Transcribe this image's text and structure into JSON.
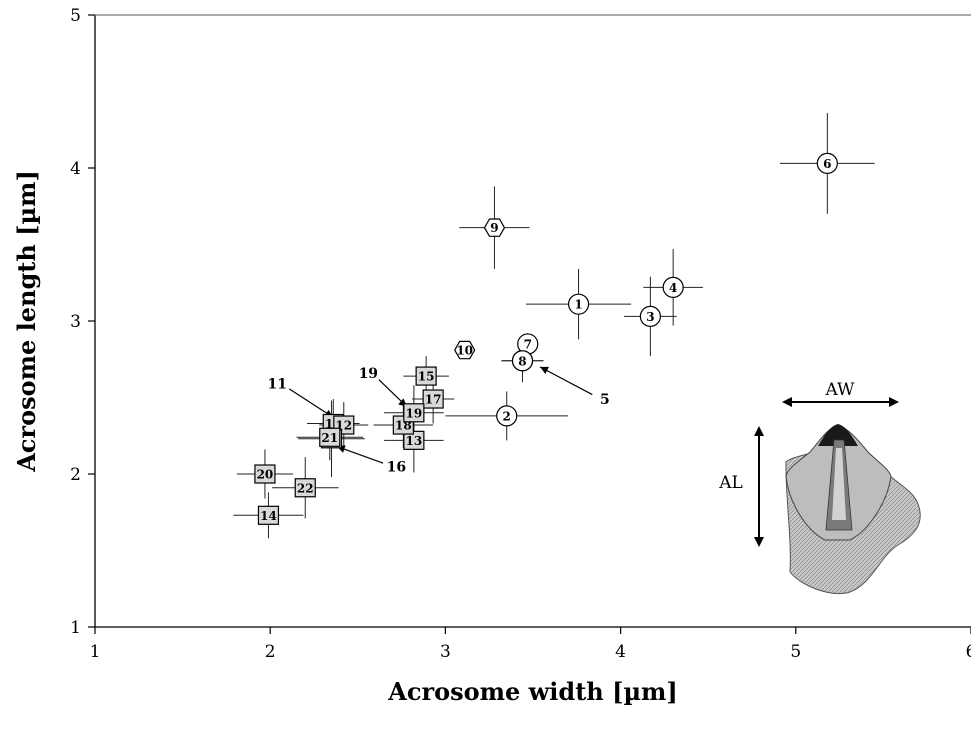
{
  "chart_data": {
    "type": "scatter",
    "xlabel": "Acrosome width [µm]",
    "ylabel": "Acrosome length [µm]",
    "xlim": [
      1,
      6
    ],
    "ylim": [
      1,
      5
    ],
    "xticks": [
      "1",
      "2",
      "3",
      "4",
      "5",
      "6"
    ],
    "yticks": [
      "1",
      "2",
      "3",
      "4",
      "5"
    ],
    "grid": false,
    "points": [
      {
        "label": "1",
        "x": 3.76,
        "y": 3.11,
        "xerr": 0.3,
        "yerr": 0.23,
        "marker": "circle"
      },
      {
        "label": "2",
        "x": 3.35,
        "y": 2.38,
        "xerr": 0.35,
        "yerr": 0.16,
        "marker": "circle"
      },
      {
        "label": "3",
        "x": 4.17,
        "y": 3.03,
        "xerr": 0.15,
        "yerr": 0.26,
        "marker": "circle"
      },
      {
        "label": "4",
        "x": 4.3,
        "y": 3.22,
        "xerr": 0.17,
        "yerr": 0.25,
        "marker": "circle"
      },
      {
        "label": "5",
        "x": 3.44,
        "y": 2.74,
        "xerr": 0.12,
        "yerr": 0.14,
        "marker": "circle"
      },
      {
        "label": "6",
        "x": 5.18,
        "y": 4.03,
        "xerr": 0.27,
        "yerr": 0.33,
        "marker": "circle"
      },
      {
        "label": "7",
        "x": 3.47,
        "y": 2.85,
        "xerr": 0.05,
        "yerr": 0.07,
        "marker": "circle"
      },
      {
        "label": "8",
        "x": 3.44,
        "y": 2.74,
        "xerr": 0.12,
        "yerr": 0.14,
        "marker": "circle"
      },
      {
        "label": "9",
        "x": 3.28,
        "y": 3.61,
        "xerr": 0.2,
        "yerr": 0.27,
        "marker": "hexagon"
      },
      {
        "label": "10",
        "x": 3.11,
        "y": 2.81,
        "xerr": 0.0,
        "yerr": 0.0,
        "marker": "hexagon"
      },
      {
        "label": "11",
        "x": 2.36,
        "y": 2.33,
        "xerr": 0.15,
        "yerr": 0.16,
        "marker": "square"
      },
      {
        "label": "12",
        "x": 2.42,
        "y": 2.32,
        "xerr": 0.14,
        "yerr": 0.15,
        "marker": "square"
      },
      {
        "label": "13",
        "x": 2.82,
        "y": 2.22,
        "xerr": 0.17,
        "yerr": 0.21,
        "marker": "square"
      },
      {
        "label": "14",
        "x": 1.99,
        "y": 1.73,
        "xerr": 0.2,
        "yerr": 0.15,
        "marker": "square"
      },
      {
        "label": "15",
        "x": 2.89,
        "y": 2.64,
        "xerr": 0.13,
        "yerr": 0.13,
        "marker": "square"
      },
      {
        "label": "16",
        "x": 2.35,
        "y": 2.23,
        "xerr": 0.19,
        "yerr": 0.25,
        "marker": "square"
      },
      {
        "label": "17",
        "x": 2.93,
        "y": 2.49,
        "xerr": 0.12,
        "yerr": 0.16,
        "marker": "square"
      },
      {
        "label": "18",
        "x": 2.76,
        "y": 2.32,
        "xerr": 0.17,
        "yerr": 0.15,
        "marker": "square"
      },
      {
        "label": "19",
        "x": 2.82,
        "y": 2.4,
        "xerr": 0.17,
        "yerr": 0.18,
        "marker": "square"
      },
      {
        "label": "20",
        "x": 1.97,
        "y": 2.0,
        "xerr": 0.16,
        "yerr": 0.16,
        "marker": "square"
      },
      {
        "label": "21",
        "x": 2.34,
        "y": 2.24,
        "xerr": 0.19,
        "yerr": 0.15,
        "marker": "square"
      },
      {
        "label": "22",
        "x": 2.2,
        "y": 1.91,
        "xerr": 0.19,
        "yerr": 0.2,
        "marker": "square"
      }
    ],
    "annotations": [
      {
        "text": "11",
        "label_x": 2.04,
        "label_y": 2.59,
        "x": 2.36,
        "y": 2.37
      },
      {
        "text": "19",
        "label_x": 2.56,
        "label_y": 2.66,
        "x": 2.78,
        "y": 2.44
      },
      {
        "text": "16",
        "label_x": 2.72,
        "label_y": 2.05,
        "x": 2.38,
        "y": 2.18
      },
      {
        "text": "5",
        "label_x": 3.91,
        "label_y": 2.49,
        "x": 3.54,
        "y": 2.7
      }
    ],
    "inset": {
      "labels": {
        "width": "AW",
        "length": "AL"
      },
      "placement": "bottom-right"
    }
  }
}
